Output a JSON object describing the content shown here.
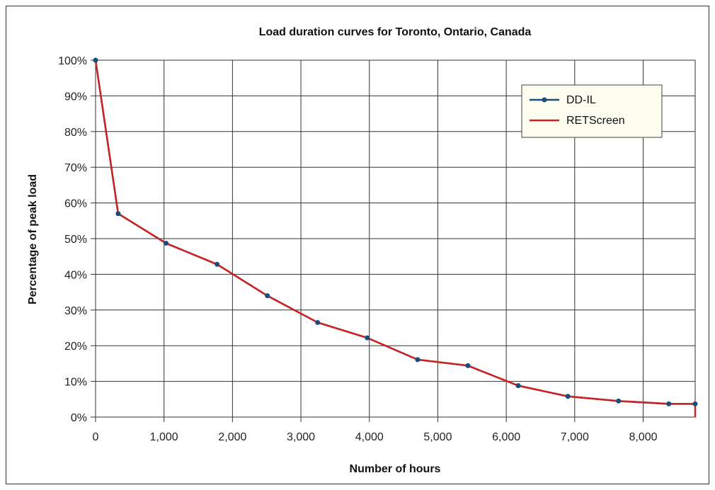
{
  "chart_data": {
    "type": "line",
    "title": "Load duration curves for Toronto, Ontario, Canada",
    "xlabel": "Number of hours",
    "ylabel": "Percentage of peak load",
    "xlim": [
      0,
      8760
    ],
    "ylim": [
      0,
      100
    ],
    "x_ticks": [
      0,
      1000,
      2000,
      3000,
      4000,
      5000,
      6000,
      7000,
      8000
    ],
    "x_tick_labels": [
      "0",
      "1,000",
      "2,000",
      "3,000",
      "4,000",
      "5,000",
      "6,000",
      "7,000",
      "8,000"
    ],
    "y_ticks": [
      0,
      10,
      20,
      30,
      40,
      50,
      60,
      70,
      80,
      90,
      100
    ],
    "y_tick_labels": [
      "0%",
      "10%",
      "20%",
      "30%",
      "40%",
      "50%",
      "60%",
      "70%",
      "80%",
      "90%",
      "100%"
    ],
    "grid": true,
    "legend_position": "top-right",
    "series": [
      {
        "name": "DD-IL",
        "color": "#1a4e7a",
        "markers": true,
        "x": [
          0,
          330,
          1030,
          1775,
          2510,
          3245,
          3970,
          4705,
          5440,
          6175,
          6900,
          7640,
          8375,
          8760
        ],
        "y": [
          100,
          57,
          48.7,
          42.8,
          34,
          26.5,
          22.2,
          16.1,
          14.4,
          8.8,
          5.8,
          4.5,
          3.7,
          3.7
        ]
      },
      {
        "name": "RETScreen",
        "color": "#cc2222",
        "markers": false,
        "x": [
          0,
          330,
          1030,
          1775,
          2510,
          3245,
          3970,
          4705,
          5440,
          6175,
          6900,
          7640,
          8375,
          8760,
          8760
        ],
        "y": [
          100,
          57,
          48.7,
          42.8,
          34,
          26.5,
          22.2,
          16.1,
          14.4,
          8.8,
          5.8,
          4.5,
          3.7,
          3.7,
          0
        ]
      }
    ]
  }
}
